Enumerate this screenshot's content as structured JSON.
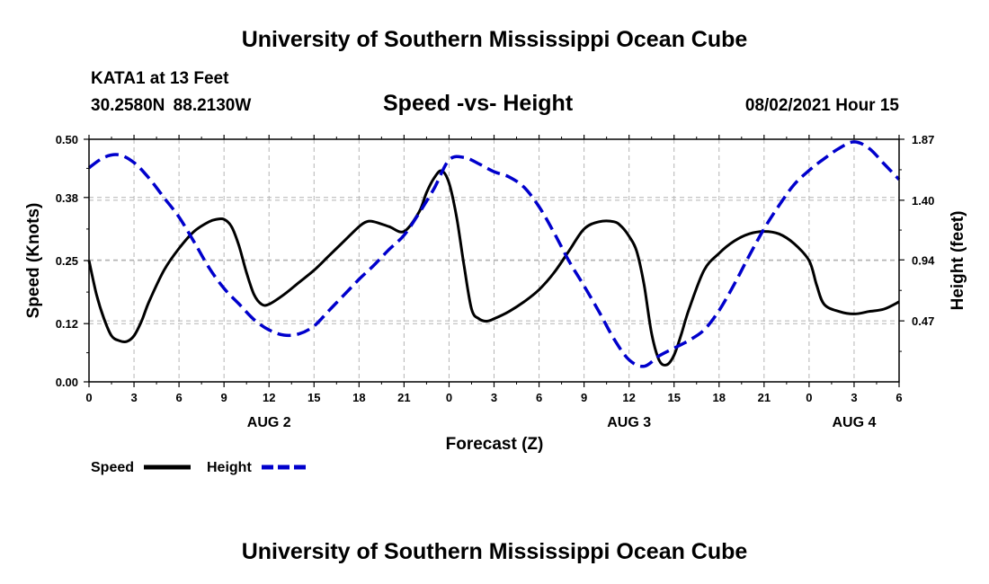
{
  "header": {
    "title": "University of Southern Mississippi Ocean Cube",
    "station": "KATA1 at 13 Feet",
    "coordinates": "30.2580N  88.2130W",
    "chart_title": "Speed -vs- Height",
    "datetime": "08/02/2021 Hour 15"
  },
  "footer": {
    "title": "University of Southern Mississippi Ocean Cube"
  },
  "chart_data": {
    "type": "line",
    "title": "Speed -vs- Height",
    "xlabel": "Forecast (Z)",
    "ylabel": "Speed (Knots)",
    "y2label": "Height (feet)",
    "xlim": [
      0,
      54
    ],
    "ylim": [
      0,
      0.5
    ],
    "y2lim": [
      0.0,
      1.87
    ],
    "grid": true,
    "x_ticks": [
      0,
      3,
      6,
      9,
      12,
      15,
      18,
      21,
      24,
      27,
      30,
      33,
      36,
      39,
      42,
      45,
      48,
      51,
      54
    ],
    "x_tick_labels": [
      "0",
      "3",
      "6",
      "9",
      "12",
      "15",
      "18",
      "21",
      "0",
      "3",
      "6",
      "9",
      "12",
      "15",
      "18",
      "21",
      "0",
      "3",
      "6"
    ],
    "day_labels": [
      {
        "x": 12,
        "label": "AUG 2"
      },
      {
        "x": 36,
        "label": "AUG 3"
      },
      {
        "x": 51,
        "label": "AUG 4"
      }
    ],
    "y_ticks": [
      0.0,
      0.12,
      0.25,
      0.38,
      0.5
    ],
    "y_tick_labels": [
      "0.00",
      "0.12",
      "0.25",
      "0.38",
      "0.50"
    ],
    "y2_ticks": [
      0.47,
      0.94,
      1.4,
      1.87
    ],
    "y2_tick_labels": [
      "0.47",
      "0.94",
      "1.40",
      "1.87"
    ],
    "legend": {
      "position": "bottom-left"
    },
    "series": [
      {
        "name": "Speed",
        "axis": "left",
        "color": "#000000",
        "style": "solid",
        "x": [
          0,
          0.5,
          1,
          1.5,
          2,
          2.5,
          3,
          3.5,
          4,
          5,
          6,
          7,
          8,
          8.5,
          9,
          9.5,
          10,
          10.5,
          11,
          11.5,
          12,
          13,
          14,
          15,
          16,
          17,
          18,
          18.5,
          19,
          20,
          21,
          22,
          22.5,
          23,
          23.5,
          24,
          24.5,
          25,
          25.5,
          26,
          26.5,
          27,
          28,
          29,
          30,
          31,
          32,
          33,
          34,
          35,
          35.5,
          36,
          36.5,
          37,
          37.5,
          38,
          38.5,
          39,
          39.5,
          40,
          41,
          42,
          43,
          44,
          45,
          46,
          47,
          48,
          48.5,
          49,
          50,
          51,
          52,
          53,
          54
        ],
        "y": [
          0.25,
          0.18,
          0.13,
          0.095,
          0.085,
          0.083,
          0.095,
          0.125,
          0.165,
          0.23,
          0.275,
          0.31,
          0.33,
          0.335,
          0.335,
          0.32,
          0.28,
          0.225,
          0.18,
          0.16,
          0.16,
          0.18,
          0.205,
          0.23,
          0.26,
          0.29,
          0.32,
          0.33,
          0.33,
          0.32,
          0.31,
          0.35,
          0.39,
          0.42,
          0.435,
          0.41,
          0.34,
          0.24,
          0.15,
          0.13,
          0.125,
          0.13,
          0.145,
          0.165,
          0.19,
          0.225,
          0.27,
          0.315,
          0.33,
          0.33,
          0.32,
          0.3,
          0.27,
          0.2,
          0.1,
          0.045,
          0.035,
          0.055,
          0.1,
          0.15,
          0.23,
          0.265,
          0.29,
          0.305,
          0.31,
          0.305,
          0.285,
          0.25,
          0.2,
          0.16,
          0.145,
          0.14,
          0.145,
          0.15,
          0.165
        ]
      },
      {
        "name": "Height",
        "axis": "right",
        "color": "#0000cc",
        "style": "dashed",
        "x": [
          0,
          1,
          2,
          3,
          4,
          5,
          6,
          7,
          8,
          9,
          10,
          11,
          12,
          13,
          14,
          15,
          16,
          17,
          18,
          19,
          20,
          21,
          22,
          23,
          24,
          25,
          26,
          27,
          28,
          29,
          30,
          31,
          32,
          33,
          34,
          35,
          36,
          37,
          38,
          39,
          40,
          41,
          42,
          43,
          44,
          45,
          46,
          47,
          48,
          49,
          50,
          51,
          52,
          53,
          54
        ],
        "y": [
          1.65,
          1.73,
          1.75,
          1.69,
          1.57,
          1.42,
          1.27,
          1.08,
          0.88,
          0.72,
          0.6,
          0.48,
          0.4,
          0.36,
          0.37,
          0.43,
          0.55,
          0.67,
          0.79,
          0.9,
          1.02,
          1.13,
          1.3,
          1.49,
          1.71,
          1.73,
          1.68,
          1.62,
          1.58,
          1.5,
          1.35,
          1.15,
          0.93,
          0.74,
          0.54,
          0.33,
          0.17,
          0.12,
          0.2,
          0.26,
          0.32,
          0.4,
          0.55,
          0.75,
          0.97,
          1.18,
          1.36,
          1.52,
          1.63,
          1.72,
          1.8,
          1.85,
          1.8,
          1.68,
          1.56
        ]
      }
    ]
  }
}
